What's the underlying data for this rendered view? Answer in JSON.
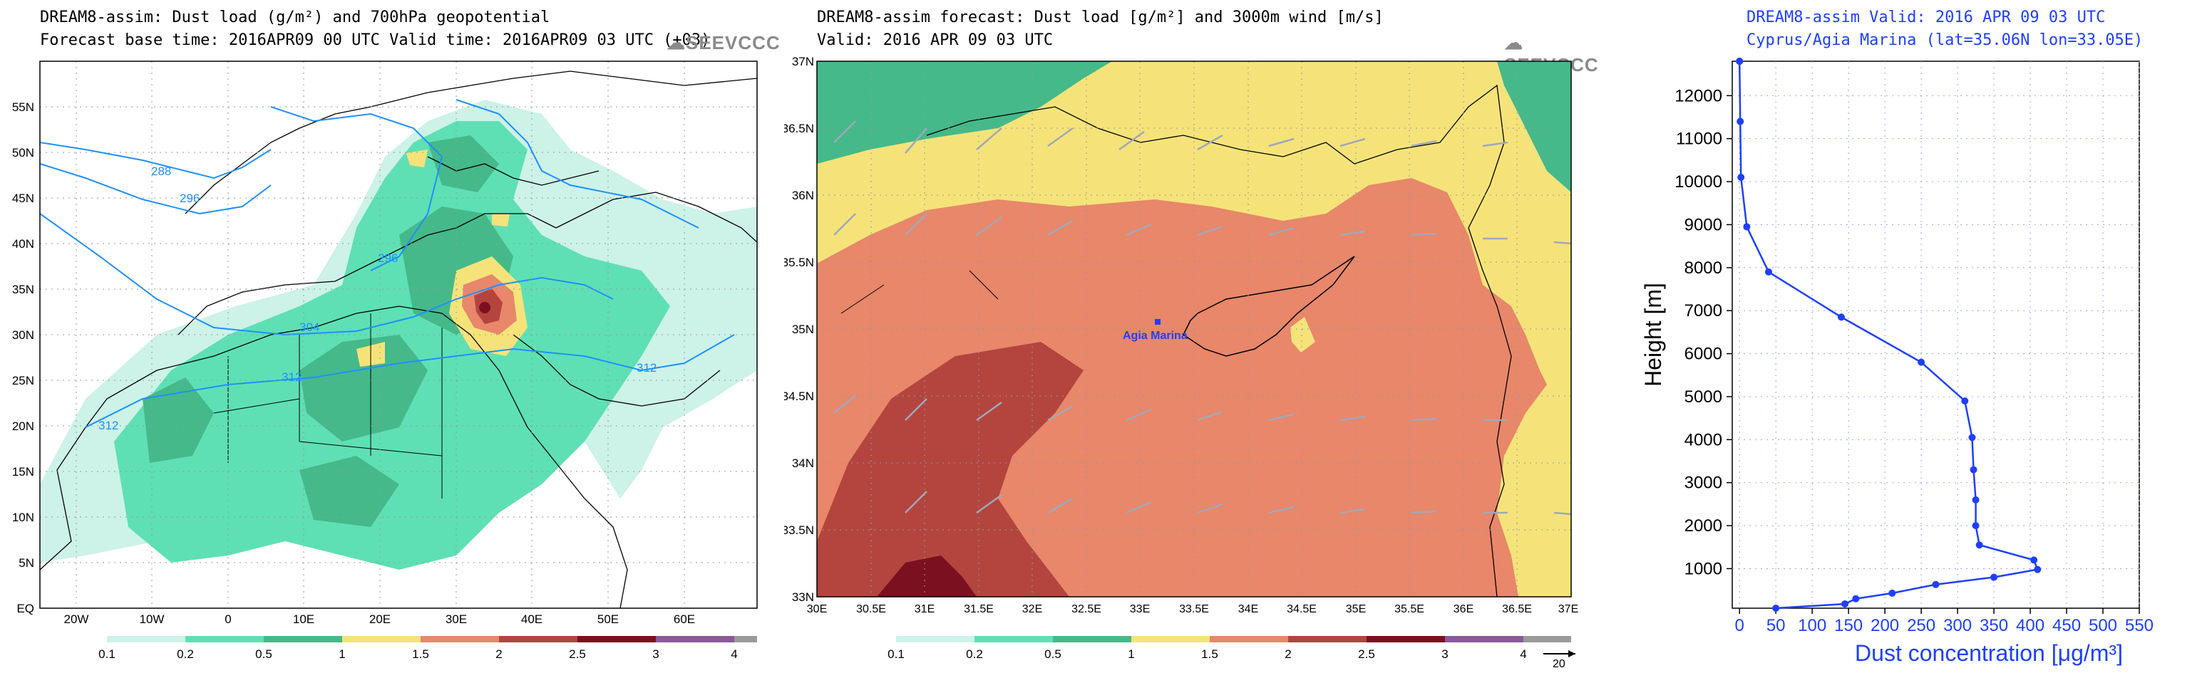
{
  "panel1": {
    "title_line1": "DREAM8-assim: Dust load (g/m²) and 700hPa geopotential",
    "title_line2": "Forecast base time: 2016APR09 00 UTC  Valid time: 2016APR09 03 UTC  (+03)",
    "logo": "SEEVCCC",
    "lat_labels": [
      "55N",
      "50N",
      "45N",
      "40N",
      "35N",
      "30N",
      "25N",
      "20N",
      "15N",
      "10N",
      "5N",
      "EQ"
    ],
    "lon_labels": [
      "20W",
      "10W",
      "0",
      "10E",
      "20E",
      "30E",
      "40E",
      "50E",
      "60E"
    ],
    "contour_labels": [
      "288",
      "296",
      "296",
      "304",
      "312",
      "312",
      "312"
    ],
    "colorbar_labels": [
      "0.1",
      "0.2",
      "0.5",
      "1",
      "1.5",
      "2",
      "2.5",
      "3",
      "4"
    ]
  },
  "panel2": {
    "title_line1": "DREAM8-assim forecast: Dust load [g/m²] and 3000m wind [m/s]",
    "title_line2": "Valid: 2016 APR 09   03 UTC",
    "logo": "SEEVCCC",
    "lat_labels": [
      "37N",
      "36.5N",
      "36N",
      "35.5N",
      "35N",
      "34.5N",
      "34N",
      "33.5N",
      "33N"
    ],
    "lon_labels": [
      "30E",
      "30.5E",
      "31E",
      "31.5E",
      "32E",
      "32.5E",
      "33E",
      "33.5E",
      "34E",
      "34.5E",
      "35E",
      "35.5E",
      "36E",
      "36.5E",
      "37E"
    ],
    "station_label": "Agia Marina",
    "colorbar_labels": [
      "0.1",
      "0.2",
      "0.5",
      "1",
      "1.5",
      "2",
      "2.5",
      "3",
      "4"
    ],
    "wind_ref": "20"
  },
  "panel3": {
    "title_line1": "DREAM8-assim   Valid: 2016 APR 09   03 UTC",
    "title_line2": "Cyprus/Agia Marina (lat=35.06N lon=33.05E)"
  },
  "colors": {
    "c01": "#cdf2e8",
    "c02": "#5ee0b4",
    "c05": "#45b98a",
    "c1": "#f5e37a",
    "c15": "#e8876a",
    "c2": "#b3453e",
    "c25": "#7a1020",
    "c3": "#8a5a9a",
    "c4": "#9a9a9a",
    "profile": "#1f3fff"
  },
  "chart_data": {
    "type": "line",
    "title": "DREAM8-assim   Valid: 2016 APR 09   03 UTC",
    "subtitle": "Cyprus/Agia Marina (lat=35.06N lon=33.05E)",
    "xlabel": "Dust concentration [μg/m³]",
    "ylabel": "Height [m]",
    "xlim": [
      -10,
      550
    ],
    "ylim": [
      80,
      12800
    ],
    "xticks": [
      "0",
      "50",
      "100",
      "150",
      "200",
      "250",
      "300",
      "350",
      "400",
      "450",
      "500",
      "550"
    ],
    "yticks": [
      "1000",
      "2000",
      "3000",
      "4000",
      "5000",
      "6000",
      "7000",
      "8000",
      "9000",
      "10000",
      "11000",
      "12000"
    ],
    "grid": true,
    "series": [
      {
        "name": "Dust concentration",
        "x": [
          50,
          145,
          160,
          210,
          270,
          350,
          410,
          405,
          330,
          325,
          325,
          322,
          320,
          310,
          250,
          140,
          40,
          10,
          2,
          1,
          0,
          0,
          0
        ],
        "y": [
          80,
          180,
          300,
          430,
          630,
          800,
          980,
          1200,
          1550,
          2000,
          2600,
          3300,
          4050,
          4900,
          5800,
          6850,
          7900,
          8950,
          10100,
          11400,
          12800,
          12800,
          12800
        ]
      }
    ]
  }
}
